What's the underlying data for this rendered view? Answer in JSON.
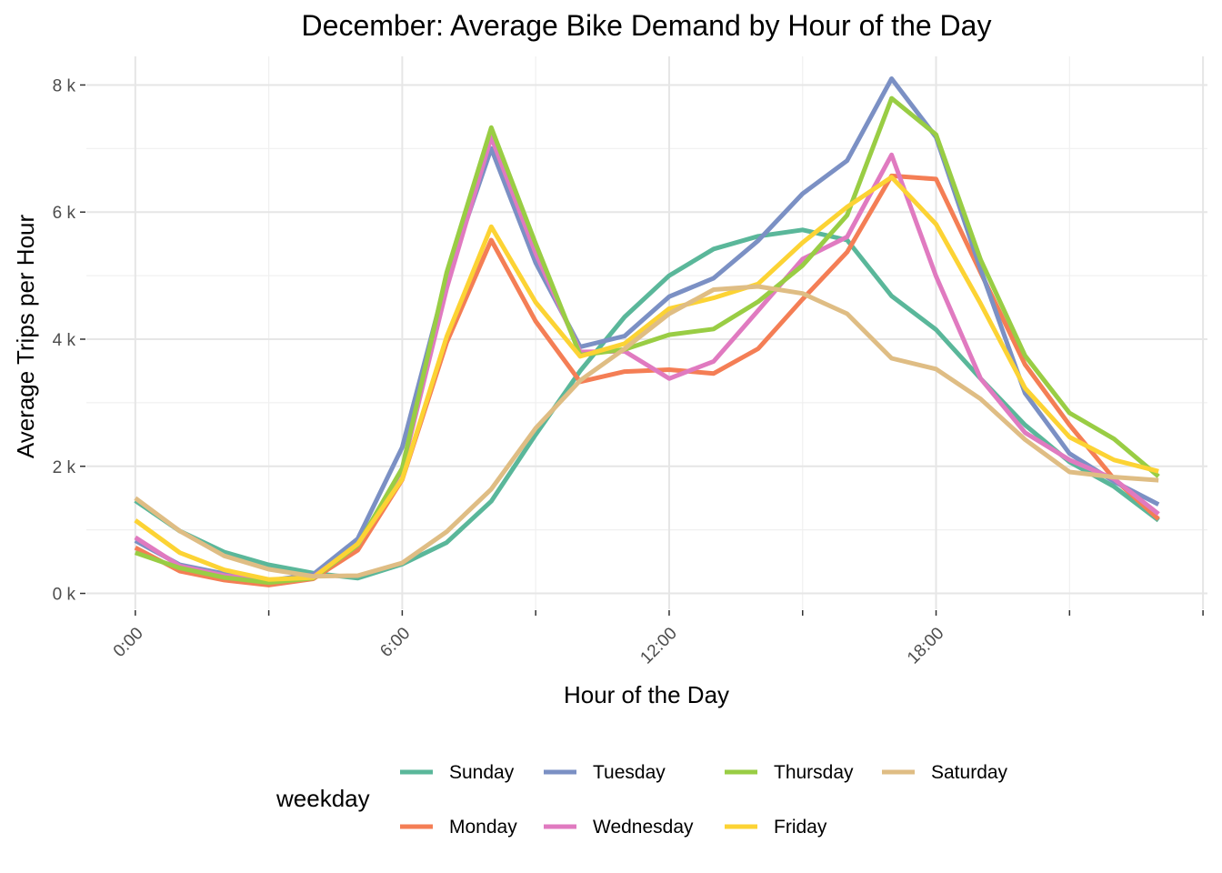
{
  "chart_data": {
    "type": "line",
    "title": "December: Average Bike Demand by Hour of the Day",
    "xlabel": "Hour of the Day",
    "ylabel": "Average Trips per Hour",
    "x": [
      0,
      1,
      2,
      3,
      4,
      5,
      6,
      7,
      8,
      9,
      10,
      11,
      12,
      13,
      14,
      15,
      16,
      17,
      18,
      19,
      20,
      21,
      22,
      23
    ],
    "xlim": [
      -1.1,
      24.1
    ],
    "ylim": [
      -250,
      8450
    ],
    "x_ticks": [
      0,
      6,
      12,
      18
    ],
    "x_tick_labels": [
      "0:00",
      "6:00",
      "12:00",
      "18:00"
    ],
    "y_ticks": [
      0,
      2000,
      4000,
      6000,
      8000
    ],
    "y_tick_labels": [
      "0 k",
      "2 k",
      "4 k",
      "6 k",
      "8 k"
    ],
    "grid": true,
    "legend": {
      "title": "weekday",
      "position": "bottom"
    },
    "series": [
      {
        "name": "Sunday",
        "color": "#5ab79a",
        "values": [
          1460,
          980,
          650,
          450,
          320,
          240,
          460,
          800,
          1450,
          2500,
          3500,
          4350,
          5000,
          5420,
          5620,
          5720,
          5560,
          4680,
          4150,
          3380,
          2650,
          2070,
          1680,
          1150
        ]
      },
      {
        "name": "Monday",
        "color": "#f47e55",
        "values": [
          720,
          350,
          210,
          130,
          230,
          680,
          1790,
          3950,
          5560,
          4280,
          3330,
          3490,
          3520,
          3460,
          3850,
          4630,
          5370,
          6570,
          6520,
          5050,
          3600,
          2650,
          1800,
          1170
        ]
      },
      {
        "name": "Tuesday",
        "color": "#7b90c4",
        "values": [
          830,
          450,
          310,
          200,
          300,
          860,
          2300,
          4960,
          7000,
          5200,
          3880,
          4050,
          4670,
          4960,
          5550,
          6290,
          6810,
          8100,
          7180,
          5100,
          3150,
          2200,
          1760,
          1400
        ]
      },
      {
        "name": "Wednesday",
        "color": "#e07ac0",
        "values": [
          880,
          430,
          280,
          200,
          260,
          760,
          1950,
          4800,
          7180,
          5350,
          3800,
          3810,
          3380,
          3650,
          4450,
          5260,
          5610,
          6900,
          4990,
          3380,
          2530,
          2100,
          1800,
          1250
        ]
      },
      {
        "name": "Thursday",
        "color": "#99cd44",
        "values": [
          640,
          400,
          250,
          170,
          240,
          760,
          1970,
          5050,
          7330,
          5500,
          3750,
          3840,
          4070,
          4160,
          4590,
          5160,
          5950,
          7790,
          7220,
          5250,
          3740,
          2840,
          2430,
          1840
        ]
      },
      {
        "name": "Friday",
        "color": "#fcd334",
        "values": [
          1150,
          640,
          370,
          220,
          250,
          780,
          1800,
          4040,
          5770,
          4580,
          3730,
          3930,
          4480,
          4650,
          4870,
          5520,
          6080,
          6550,
          5810,
          4560,
          3230,
          2460,
          2100,
          1920
        ]
      },
      {
        "name": "Saturday",
        "color": "#dfbd84",
        "values": [
          1500,
          980,
          590,
          380,
          270,
          280,
          480,
          970,
          1640,
          2600,
          3350,
          3850,
          4400,
          4780,
          4830,
          4720,
          4400,
          3700,
          3530,
          3060,
          2420,
          1910,
          1830,
          1780
        ]
      }
    ]
  }
}
